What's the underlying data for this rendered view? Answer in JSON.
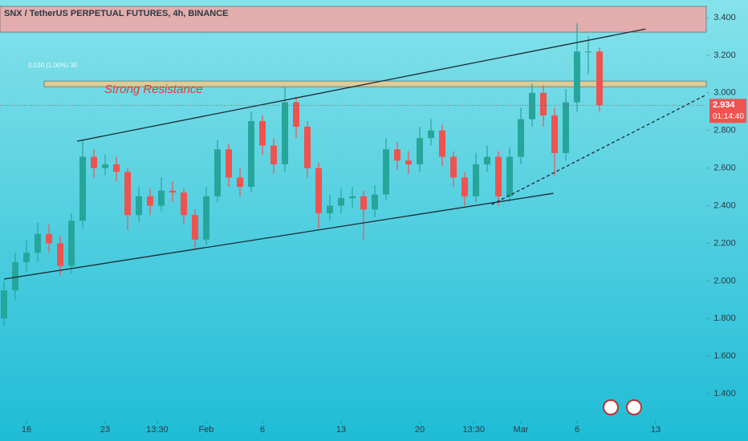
{
  "chart_data": {
    "type": "candlestick",
    "title": "SNX / TetherUS PERPETUAL FUTURES, 4h, BINANCE",
    "annotation": "Strong Resistance",
    "change_label": "0.030 (1.00%) 30",
    "last_price": 2.934,
    "countdown": "01:14:40",
    "up_color": "#26a69a",
    "down_color": "#ef5350",
    "x": [
      -2,
      -1,
      0,
      1,
      2,
      3,
      4,
      5,
      6,
      7,
      8,
      9,
      10,
      11,
      12,
      13,
      14,
      15,
      16,
      17,
      18,
      19,
      20,
      21,
      22,
      23,
      24,
      25,
      26,
      27,
      28,
      29,
      30,
      31,
      32,
      33,
      34,
      35,
      36,
      37,
      38,
      39,
      40,
      41,
      42,
      43,
      44,
      45,
      46,
      47,
      48,
      49,
      50,
      51
    ],
    "open": [
      1.8,
      1.95,
      2.1,
      2.15,
      2.25,
      2.2,
      2.08,
      2.32,
      2.66,
      2.6,
      2.62,
      2.58,
      2.35,
      2.45,
      2.4,
      2.48,
      2.47,
      2.35,
      2.22,
      2.45,
      2.7,
      2.55,
      2.5,
      2.85,
      2.72,
      2.62,
      2.95,
      2.82,
      2.6,
      2.36,
      2.4,
      2.44,
      2.45,
      2.38,
      2.46,
      2.7,
      2.64,
      2.62,
      2.76,
      2.8,
      2.66,
      2.55,
      2.45,
      2.62,
      2.66,
      2.45,
      2.66,
      2.86,
      3.0,
      2.88,
      2.68,
      2.95,
      3.22,
      3.22
    ],
    "high": [
      2.0,
      2.15,
      2.22,
      2.31,
      2.3,
      2.24,
      2.36,
      2.75,
      2.7,
      2.67,
      2.66,
      2.6,
      2.5,
      2.49,
      2.55,
      2.53,
      2.49,
      2.38,
      2.5,
      2.75,
      2.73,
      2.6,
      2.9,
      2.88,
      2.76,
      3.03,
      2.98,
      2.85,
      2.63,
      2.46,
      2.49,
      2.5,
      2.48,
      2.51,
      2.76,
      2.74,
      2.69,
      2.82,
      2.86,
      2.83,
      2.69,
      2.58,
      2.68,
      2.72,
      2.69,
      2.71,
      2.92,
      3.05,
      3.04,
      2.92,
      3.02,
      3.37,
      3.3,
      3.24
    ],
    "low": [
      1.76,
      1.9,
      2.05,
      2.1,
      2.15,
      2.03,
      2.04,
      2.28,
      2.55,
      2.56,
      2.53,
      2.27,
      2.31,
      2.35,
      2.37,
      2.42,
      2.3,
      2.17,
      2.19,
      2.42,
      2.5,
      2.45,
      2.47,
      2.67,
      2.57,
      2.58,
      2.76,
      2.55,
      2.28,
      2.32,
      2.36,
      2.39,
      2.22,
      2.34,
      2.43,
      2.59,
      2.57,
      2.58,
      2.72,
      2.61,
      2.5,
      2.4,
      2.42,
      2.58,
      2.4,
      2.42,
      2.62,
      2.82,
      2.82,
      2.56,
      2.64,
      2.9,
      3.1,
      2.9
    ],
    "close": [
      1.95,
      2.1,
      2.15,
      2.25,
      2.2,
      2.08,
      2.32,
      2.66,
      2.6,
      2.62,
      2.58,
      2.35,
      2.45,
      2.4,
      2.48,
      2.47,
      2.35,
      2.22,
      2.45,
      2.7,
      2.55,
      2.5,
      2.85,
      2.72,
      2.62,
      2.95,
      2.82,
      2.6,
      2.36,
      2.4,
      2.44,
      2.45,
      2.38,
      2.46,
      2.7,
      2.64,
      2.62,
      2.76,
      2.8,
      2.66,
      2.55,
      2.45,
      2.62,
      2.66,
      2.45,
      2.66,
      2.86,
      3.0,
      2.88,
      2.68,
      2.95,
      3.22,
      3.22,
      2.934
    ],
    "xlim": [
      -2.36,
      60.5
    ],
    "ylim": [
      1.268,
      3.494
    ],
    "xticks": [
      {
        "value": 0,
        "label": "16"
      },
      {
        "value": 7,
        "label": "23"
      },
      {
        "value": 11.64,
        "label": "13:30"
      },
      {
        "value": 16,
        "label": "Feb"
      },
      {
        "value": 21,
        "label": "6"
      },
      {
        "value": 28,
        "label": "13"
      },
      {
        "value": 35,
        "label": "20"
      },
      {
        "value": 39.8,
        "label": "13:30"
      },
      {
        "value": 44,
        "label": "Mar"
      },
      {
        "value": 49,
        "label": "6"
      },
      {
        "value": 56,
        "label": "13"
      }
    ],
    "yticks": [
      {
        "value": 3.4,
        "label": "3.400"
      },
      {
        "value": 3.2,
        "label": "3.200"
      },
      {
        "value": 3.0,
        "label": "3.000"
      },
      {
        "value": 2.8,
        "label": "2.800"
      },
      {
        "value": 2.6,
        "label": "2.600"
      },
      {
        "value": 2.4,
        "label": "2.400"
      },
      {
        "value": 2.2,
        "label": "2.200"
      },
      {
        "value": 2.0,
        "label": "2.000"
      },
      {
        "value": 1.8,
        "label": "1.800"
      },
      {
        "value": 1.6,
        "label": "1.600"
      },
      {
        "value": 1.4,
        "label": "1.400"
      }
    ],
    "zones": [
      {
        "low": 3.323,
        "high": 3.46,
        "color": "#f4a3a3"
      },
      {
        "low": 3.033,
        "high": 3.063,
        "color": "#efc98a"
      }
    ],
    "trendlines": [
      {
        "start": [
          4.5,
          2.743
        ],
        "end": [
          55.1,
          3.34
        ],
        "style": "solid"
      },
      {
        "start": [
          -2,
          2.01
        ],
        "end": [
          46.9,
          2.466
        ],
        "style": "solid"
      },
      {
        "start": [
          41.4,
          2.406
        ],
        "end": [
          60.5,
          2.99
        ],
        "style": "dashed"
      }
    ]
  }
}
